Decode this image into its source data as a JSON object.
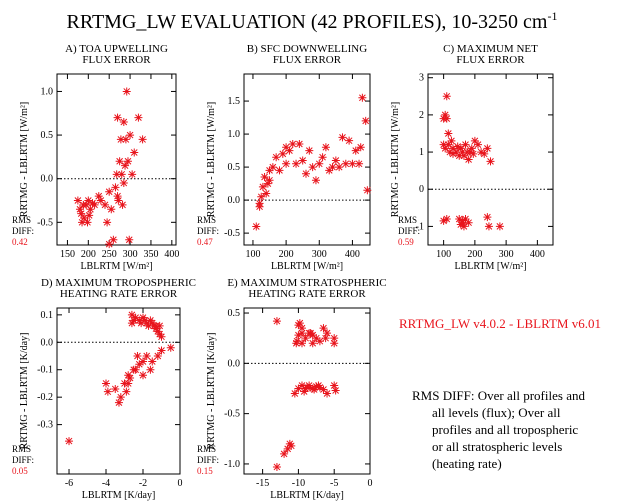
{
  "title": "RRTMG_LW EVALUATION (42 PROFILES), 10-3250 cm",
  "title_superscript": "-1",
  "version_note": "RRTMG_LW v4.0.2 - LBLRTM v6.01",
  "rms_note": [
    "RMS DIFF: Over all profiles and",
    "all levels (flux); Over all",
    "profiles and all tropospheric",
    "or all stratospheric levels",
    "(heating rate)"
  ],
  "chart_data": [
    {
      "type": "scatter",
      "title": [
        "A) TOA UPWELLING",
        "FLUX ERROR"
      ],
      "xlabel": "LBLRTM [W/m²]",
      "ylabel": "RRTMG - LBLRTM [W/m²]",
      "color": "#e8141c",
      "rms_label": [
        "RMS",
        "DIFF:"
      ],
      "rms_value": 0.42,
      "hline": 0,
      "xlim": [
        125,
        410
      ],
      "ylim": [
        -0.76,
        1.2
      ],
      "xticks": [
        150,
        200,
        250,
        300,
        350,
        400
      ],
      "yticks": [
        -0.5,
        {
          "value": 0,
          "label": "0.0"
        },
        {
          "value": 0.5,
          "label": "0.5"
        },
        {
          "value": 1,
          "label": "1.0"
        }
      ],
      "x": [
        175,
        180,
        185,
        190,
        195,
        200,
        205,
        210,
        183,
        188,
        198,
        202,
        215,
        225,
        230,
        240,
        245,
        250,
        255,
        260,
        265,
        268,
        270,
        272,
        275,
        278,
        280,
        282,
        285,
        288,
        290,
        292,
        295,
        298,
        300,
        305,
        310,
        320,
        330,
        270,
        250,
        285
      ],
      "y": [
        -0.25,
        -0.35,
        -0.5,
        -0.45,
        -0.3,
        -0.25,
        -0.35,
        -0.28,
        -0.4,
        -0.3,
        -0.5,
        -0.42,
        -0.3,
        -0.2,
        -0.25,
        -0.3,
        -0.5,
        -0.15,
        -0.35,
        -0.7,
        -0.1,
        0.05,
        -0.2,
        -0.25,
        0.2,
        0.45,
        0.05,
        -0.3,
        0.65,
        0.15,
        0.45,
        1.0,
        0.2,
        -0.7,
        0.5,
        0.05,
        0.3,
        0.7,
        0.45,
        0.7,
        -0.75,
        -0.05
      ]
    },
    {
      "type": "scatter",
      "title": [
        "B) SFC DOWNWELLING",
        "FLUX ERROR"
      ],
      "xlabel": "LBLRTM [W/m²]",
      "ylabel": "RRTMG - LBLRTM [W/m²]",
      "color": "#e8141c",
      "rms_label": [
        "RMS",
        "DIFF:"
      ],
      "rms_value": 0.47,
      "hline": 0,
      "xlim": [
        73,
        453
      ],
      "ylim": [
        -0.68,
        1.91
      ],
      "xticks": [
        100,
        200,
        300,
        400
      ],
      "yticks": [
        -0.5,
        {
          "value": 0,
          "label": "0.0"
        },
        {
          "value": 0.5,
          "label": "0.5"
        },
        {
          "value": 1,
          "label": "1.0"
        },
        {
          "value": 1.5,
          "label": "1.5"
        }
      ],
      "x": [
        110,
        120,
        125,
        130,
        135,
        140,
        145,
        150,
        160,
        170,
        180,
        190,
        200,
        210,
        220,
        230,
        240,
        250,
        260,
        270,
        280,
        290,
        300,
        310,
        320,
        330,
        340,
        350,
        360,
        370,
        380,
        390,
        400,
        410,
        420,
        425,
        430,
        440,
        445,
        120,
        150,
        200
      ],
      "y": [
        -0.4,
        -0.1,
        0.05,
        0.2,
        0.35,
        0.1,
        0.25,
        0.45,
        0.5,
        0.65,
        0.45,
        0.7,
        0.8,
        0.75,
        0.85,
        0.55,
        0.85,
        0.6,
        0.4,
        0.75,
        0.5,
        0.3,
        0.55,
        0.65,
        0.8,
        0.45,
        0.5,
        0.6,
        0.5,
        0.95,
        0.55,
        0.9,
        0.55,
        0.75,
        0.55,
        0.8,
        1.55,
        1.2,
        0.15,
        -0.05,
        0.3,
        0.55
      ]
    },
    {
      "type": "scatter",
      "title": [
        "C) MAXIMUM NET",
        "FLUX ERROR"
      ],
      "xlabel": "LBLRTM [W/m²]",
      "ylabel": "RRTMG - LBLRTM [W/m²]",
      "color": "#e8141c",
      "rms_label": [
        "RMS",
        "DIFF:"
      ],
      "rms_value": 0.59,
      "hline": 0,
      "xlim": [
        50,
        450
      ],
      "ylim": [
        -1.5,
        3.1
      ],
      "xticks": [
        100,
        200,
        300,
        400
      ],
      "yticks": [
        -1,
        0,
        1,
        2,
        3
      ],
      "x": [
        100,
        105,
        110,
        115,
        120,
        110,
        125,
        130,
        140,
        150,
        160,
        170,
        180,
        190,
        200,
        210,
        220,
        250,
        240,
        100,
        110,
        150,
        160,
        170,
        165,
        180,
        240,
        245,
        280,
        155,
        165,
        175,
        185,
        195,
        105,
        115,
        130,
        145,
        155,
        100,
        230,
        160
      ],
      "y": [
        1.2,
        2.0,
        2.5,
        1.5,
        1.0,
        1.9,
        1.3,
        1.1,
        1.0,
        0.9,
        1.0,
        1.2,
        0.8,
        1.1,
        1.3,
        1.2,
        1.0,
        0.75,
        1.1,
        -0.85,
        -0.8,
        -0.8,
        -0.9,
        -0.8,
        -1.0,
        -0.9,
        -0.75,
        -1.0,
        -1.0,
        1.1,
        0.9,
        1.0,
        1.0,
        0.95,
        1.1,
        1.2,
        0.95,
        1.15,
        -0.95,
        1.9,
        0.95,
        -0.85
      ]
    },
    {
      "type": "scatter",
      "title": [
        "D) MAXIMUM TROPOSPHERIC",
        "HEATING RATE ERROR"
      ],
      "xlabel": "LBLRTM [K/day]",
      "ylabel": "RRTMG - LBLRTM [K/day]",
      "color": "#e8141c",
      "rms_label": [
        "RMS",
        "DIFF:"
      ],
      "rms_value": 0.05,
      "hline": 0,
      "xlim": [
        -6.65,
        0
      ],
      "ylim": [
        -0.48,
        0.125
      ],
      "xticks": [
        -6,
        -4,
        -2,
        0
      ],
      "yticks": [
        -0.3,
        -0.2,
        -0.1,
        {
          "value": 0,
          "label": "0.0"
        },
        0.1
      ],
      "x": [
        -6,
        -3.2,
        -3.0,
        -2.8,
        -2.5,
        -2.3,
        -2.2,
        -2.0,
        -1.8,
        -1.5,
        -1.2,
        -1.0,
        -0.5,
        -3.5,
        -3.3,
        -2.9,
        -2.7,
        -3.9,
        -4.0,
        -2.6,
        -2.4,
        -2.2,
        -2.0,
        -1.9,
        -1.8,
        -1.6,
        -1.5,
        -1.4,
        -1.3,
        -1.2,
        -1.1,
        -2.1,
        -2.5,
        -1.7,
        -1.0,
        -2.0,
        -1.6,
        -2.6,
        -1.3,
        -1.1,
        -2.8,
        -2.4
      ],
      "y": [
        -0.36,
        -0.2,
        -0.15,
        -0.12,
        -0.1,
        -0.05,
        -0.08,
        -0.07,
        -0.05,
        -0.07,
        -0.05,
        -0.03,
        -0.02,
        -0.17,
        -0.22,
        -0.18,
        -0.13,
        -0.18,
        -0.15,
        0.1,
        0.09,
        0.08,
        0.09,
        0.08,
        0.07,
        0.08,
        0.07,
        0.06,
        0.05,
        0.04,
        0.03,
        0.07,
        0.08,
        0.06,
        0.02,
        -0.12,
        -0.1,
        0.07,
        0.06,
        0.06,
        -0.15,
        -0.1
      ]
    },
    {
      "type": "scatter",
      "title": [
        "E) MAXIMUM STRATOSPHERIC",
        "HEATING RATE ERROR"
      ],
      "xlabel": "LBLRTM [K/day]",
      "ylabel": "RRTMG - LBLRTM [K/day]",
      "color": "#e8141c",
      "rms_label": [
        "RMS",
        "DIFF:"
      ],
      "rms_value": 0.15,
      "hline": 0,
      "xlim": [
        -17.6,
        0
      ],
      "ylim": [
        -1.1,
        0.55
      ],
      "xticks": [
        -15,
        -10,
        -5,
        0
      ],
      "yticks": [
        {
          "value": -1,
          "label": "-1.0"
        },
        -0.5,
        {
          "value": 0,
          "label": "0.0"
        },
        0.5
      ],
      "x": [
        -13,
        -12,
        -11.5,
        -11,
        -13,
        -10,
        -10,
        -9.5,
        -9.5,
        -9,
        -8.5,
        -8,
        -7.5,
        -7,
        -6.5,
        -6,
        -5,
        -5,
        -9.5,
        -8,
        -10,
        -9.5,
        -9,
        -8.5,
        -8,
        -7.5,
        -7,
        -6.5,
        -5,
        -4.8,
        -10.5,
        -9.2,
        -8.8,
        -7.8,
        -7.2,
        -6,
        -10.2,
        -6.2,
        -11.2,
        -9.8,
        -8.3,
        -10.3
      ],
      "y": [
        -1.03,
        -0.9,
        -0.85,
        -0.82,
        0.42,
        0.38,
        0.28,
        0.3,
        0.2,
        0.25,
        0.3,
        0.28,
        0.25,
        0.22,
        0.35,
        0.3,
        0.25,
        0.2,
        0.35,
        0.2,
        -0.25,
        -0.22,
        -0.25,
        -0.22,
        -0.25,
        -0.23,
        -0.24,
        -0.26,
        -0.22,
        -0.27,
        -0.3,
        -0.28,
        -0.24,
        -0.26,
        -0.22,
        -0.3,
        0.22,
        0.25,
        -0.8,
        0.4,
        0.3,
        0.2
      ]
    }
  ]
}
